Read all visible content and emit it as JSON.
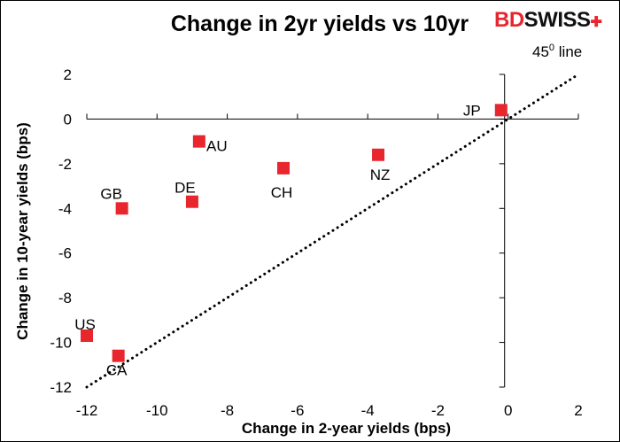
{
  "logo": {
    "part1": "BD",
    "part2": "SWISS"
  },
  "chart_data": {
    "type": "scatter",
    "title": "Change in 2yr yields vs 10yr",
    "xlabel": "Change in 2-year yields (bps)",
    "ylabel": "Change in 10-year yields (bps)",
    "xlim": [
      -12,
      2
    ],
    "ylim": [
      -12,
      2
    ],
    "xticks": [
      -12,
      -10,
      -8,
      -6,
      -4,
      -2,
      0,
      2
    ],
    "yticks": [
      -12,
      -10,
      -8,
      -6,
      -4,
      -2,
      0,
      2
    ],
    "grid": false,
    "marker_color": "#e8262e",
    "points": [
      {
        "label": "JP",
        "x": -0.2,
        "y": 0.4
      },
      {
        "label": "AU",
        "x": -8.8,
        "y": -1.0
      },
      {
        "label": "NZ",
        "x": -3.7,
        "y": -1.6
      },
      {
        "label": "CH",
        "x": -6.4,
        "y": -2.2
      },
      {
        "label": "DE",
        "x": -9.0,
        "y": -3.7
      },
      {
        "label": "GB",
        "x": -11.0,
        "y": -4.0
      },
      {
        "label": "US",
        "x": -12.0,
        "y": -9.7
      },
      {
        "label": "CA",
        "x": -11.1,
        "y": -10.6
      }
    ],
    "reference_line": {
      "label_base": "45",
      "label_sup": "0",
      "label_rest": " line",
      "slope": 1
    }
  }
}
